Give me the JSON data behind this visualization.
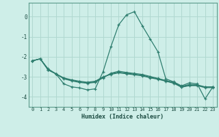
{
  "xlabel": "Humidex (Indice chaleur)",
  "background_color": "#ceeee8",
  "grid_color": "#b0d8d0",
  "line_color": "#2d7d6e",
  "x_values": [
    0,
    1,
    2,
    3,
    4,
    5,
    6,
    7,
    8,
    9,
    10,
    11,
    12,
    13,
    14,
    15,
    16,
    17,
    18,
    19,
    20,
    21,
    22,
    23
  ],
  "series": [
    [
      -2.2,
      -2.1,
      -2.6,
      -2.85,
      -3.35,
      -3.5,
      -3.55,
      -3.65,
      -3.6,
      -2.75,
      -1.5,
      -0.4,
      0.1,
      0.25,
      -0.45,
      -1.1,
      -1.75,
      -3.1,
      -3.25,
      -3.45,
      -3.3,
      -3.35,
      -4.1,
      -3.5
    ],
    [
      -2.2,
      -2.1,
      -2.65,
      -2.85,
      -3.1,
      -3.2,
      -3.28,
      -3.32,
      -3.28,
      -3.05,
      -2.82,
      -2.72,
      -2.78,
      -2.83,
      -2.88,
      -2.98,
      -3.08,
      -3.18,
      -3.28,
      -3.48,
      -3.38,
      -3.4,
      -3.5,
      -3.5
    ],
    [
      -2.2,
      -2.1,
      -2.65,
      -2.85,
      -3.08,
      -3.18,
      -3.25,
      -3.3,
      -3.25,
      -3.02,
      -2.85,
      -2.77,
      -2.82,
      -2.87,
      -2.92,
      -3.02,
      -3.1,
      -3.2,
      -3.3,
      -3.5,
      -3.42,
      -3.42,
      -3.52,
      -3.52
    ],
    [
      -2.2,
      -2.1,
      -2.65,
      -2.85,
      -3.05,
      -3.15,
      -3.22,
      -3.27,
      -3.22,
      -3.0,
      -2.88,
      -2.8,
      -2.85,
      -2.9,
      -2.95,
      -3.05,
      -3.12,
      -3.22,
      -3.32,
      -3.52,
      -3.44,
      -3.44,
      -3.54,
      -3.54
    ]
  ],
  "ylim": [
    -4.5,
    0.7
  ],
  "xlim": [
    -0.5,
    23.5
  ],
  "yticks": [
    0,
    -1,
    -2,
    -3,
    -4
  ],
  "xticks": [
    0,
    1,
    2,
    3,
    4,
    5,
    6,
    7,
    8,
    9,
    10,
    11,
    12,
    13,
    14,
    15,
    16,
    17,
    18,
    19,
    20,
    21,
    22,
    23
  ]
}
